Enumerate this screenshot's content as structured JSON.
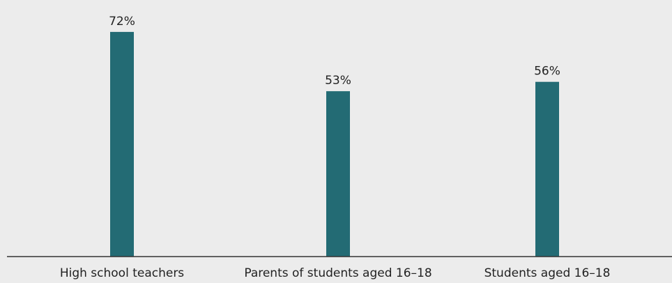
{
  "chart_data": {
    "type": "bar",
    "categories": [
      "High school teachers",
      "Parents of students aged 16–18",
      "Students aged 16–18"
    ],
    "values": [
      72,
      53,
      56
    ],
    "value_labels": [
      "72%",
      "53%",
      "56%"
    ],
    "unit": "%",
    "ylim": [
      0,
      80
    ],
    "grid": false,
    "legend": "none",
    "colors": {
      "bar": "#236b74",
      "background": "#ececec",
      "axis": "#333333",
      "text": "#222222"
    }
  }
}
